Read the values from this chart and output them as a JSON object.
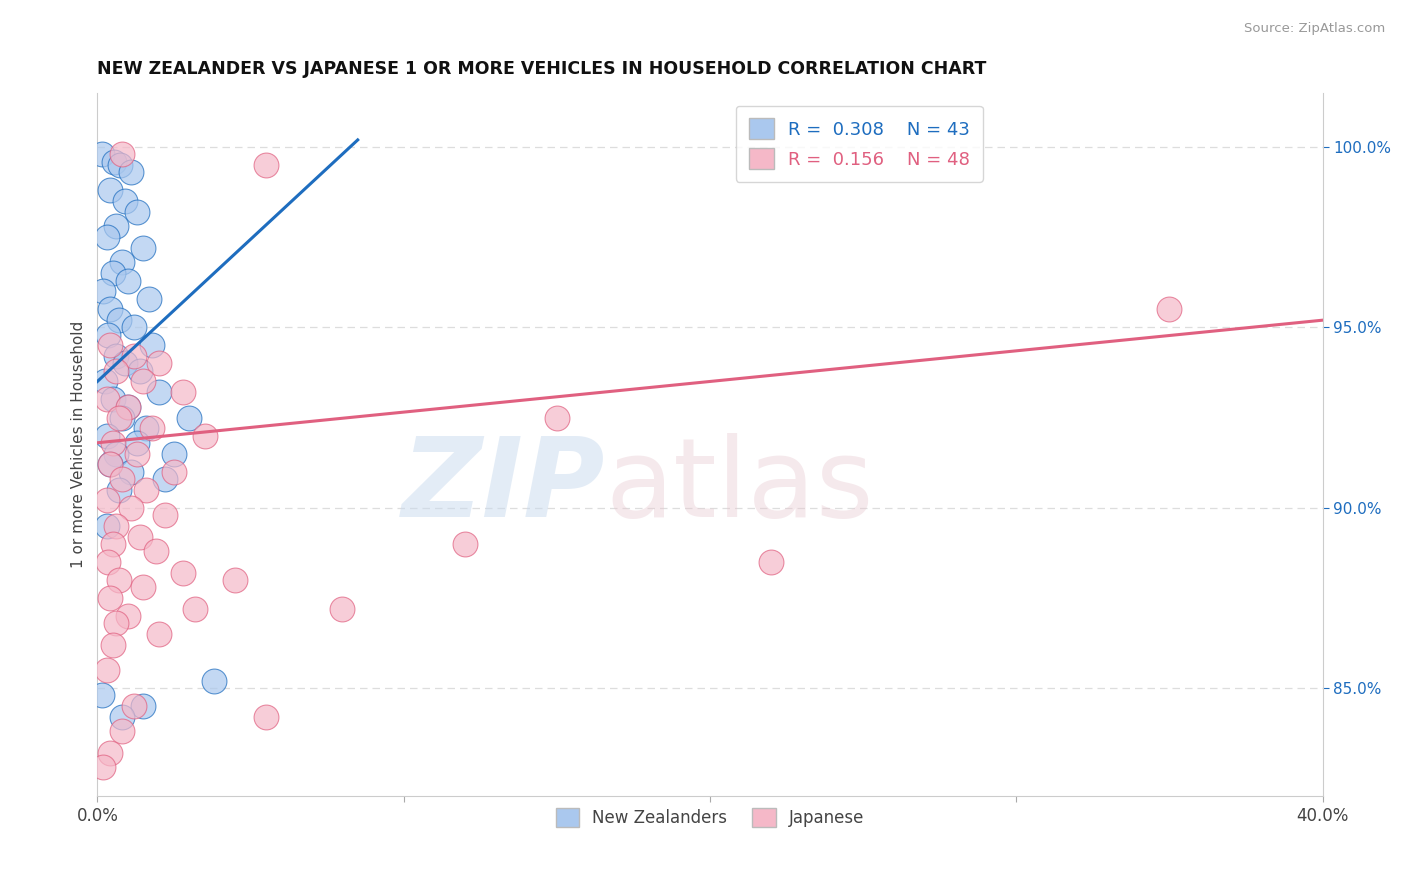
{
  "title": "NEW ZEALANDER VS JAPANESE 1 OR MORE VEHICLES IN HOUSEHOLD CORRELATION CHART",
  "source": "Source: ZipAtlas.com",
  "ylabel": "1 or more Vehicles in Household",
  "xlim": [
    0.0,
    40.0
  ],
  "ylim": [
    82.0,
    101.5
  ],
  "right_yticks": [
    85.0,
    90.0,
    95.0,
    100.0
  ],
  "right_ytick_labels": [
    "85.0%",
    "90.0%",
    "95.0%",
    "100.0%"
  ],
  "nz_color": "#aac8ee",
  "jp_color": "#f5b8c8",
  "nz_line_color": "#1e6dbf",
  "jp_line_color": "#e06080",
  "nz_line": [
    [
      0.0,
      93.5
    ],
    [
      8.5,
      100.2
    ]
  ],
  "jp_line": [
    [
      0.0,
      91.8
    ],
    [
      40.0,
      95.2
    ]
  ],
  "nz_points": [
    [
      0.15,
      99.8
    ],
    [
      0.55,
      99.6
    ],
    [
      0.75,
      99.5
    ],
    [
      1.1,
      99.3
    ],
    [
      0.4,
      98.8
    ],
    [
      0.9,
      98.5
    ],
    [
      1.3,
      98.2
    ],
    [
      0.6,
      97.8
    ],
    [
      0.3,
      97.5
    ],
    [
      1.5,
      97.2
    ],
    [
      0.8,
      96.8
    ],
    [
      0.5,
      96.5
    ],
    [
      1.0,
      96.3
    ],
    [
      0.2,
      96.0
    ],
    [
      1.7,
      95.8
    ],
    [
      0.4,
      95.5
    ],
    [
      0.7,
      95.2
    ],
    [
      1.2,
      95.0
    ],
    [
      0.35,
      94.8
    ],
    [
      1.8,
      94.5
    ],
    [
      0.6,
      94.2
    ],
    [
      0.9,
      94.0
    ],
    [
      1.4,
      93.8
    ],
    [
      0.25,
      93.5
    ],
    [
      2.0,
      93.2
    ],
    [
      0.5,
      93.0
    ],
    [
      1.0,
      92.8
    ],
    [
      0.8,
      92.5
    ],
    [
      1.6,
      92.2
    ],
    [
      0.3,
      92.0
    ],
    [
      1.3,
      91.8
    ],
    [
      0.6,
      91.5
    ],
    [
      0.4,
      91.2
    ],
    [
      1.1,
      91.0
    ],
    [
      2.2,
      90.8
    ],
    [
      3.0,
      92.5
    ],
    [
      0.7,
      90.5
    ],
    [
      2.5,
      91.5
    ],
    [
      0.3,
      89.5
    ],
    [
      0.15,
      84.8
    ],
    [
      1.5,
      84.5
    ],
    [
      0.8,
      84.2
    ],
    [
      3.8,
      85.2
    ]
  ],
  "jp_points": [
    [
      0.8,
      99.8
    ],
    [
      5.5,
      99.5
    ],
    [
      0.4,
      94.5
    ],
    [
      1.2,
      94.2
    ],
    [
      2.0,
      94.0
    ],
    [
      0.6,
      93.8
    ],
    [
      1.5,
      93.5
    ],
    [
      2.8,
      93.2
    ],
    [
      0.3,
      93.0
    ],
    [
      1.0,
      92.8
    ],
    [
      0.7,
      92.5
    ],
    [
      1.8,
      92.2
    ],
    [
      3.5,
      92.0
    ],
    [
      0.5,
      91.8
    ],
    [
      1.3,
      91.5
    ],
    [
      0.4,
      91.2
    ],
    [
      2.5,
      91.0
    ],
    [
      0.8,
      90.8
    ],
    [
      1.6,
      90.5
    ],
    [
      0.3,
      90.2
    ],
    [
      1.1,
      90.0
    ],
    [
      2.2,
      89.8
    ],
    [
      0.6,
      89.5
    ],
    [
      1.4,
      89.2
    ],
    [
      0.5,
      89.0
    ],
    [
      1.9,
      88.8
    ],
    [
      0.35,
      88.5
    ],
    [
      2.8,
      88.2
    ],
    [
      0.7,
      88.0
    ],
    [
      1.5,
      87.8
    ],
    [
      0.4,
      87.5
    ],
    [
      3.2,
      87.2
    ],
    [
      1.0,
      87.0
    ],
    [
      0.6,
      86.8
    ],
    [
      2.0,
      86.5
    ],
    [
      0.5,
      86.2
    ],
    [
      4.5,
      88.0
    ],
    [
      8.0,
      87.2
    ],
    [
      0.3,
      85.5
    ],
    [
      1.2,
      84.5
    ],
    [
      0.8,
      83.8
    ],
    [
      5.5,
      84.2
    ],
    [
      0.4,
      83.2
    ],
    [
      0.2,
      82.8
    ],
    [
      15.0,
      92.5
    ],
    [
      22.0,
      88.5
    ],
    [
      12.0,
      89.0
    ],
    [
      35.0,
      95.5
    ]
  ],
  "background_color": "#ffffff",
  "grid_color": "#dddddd"
}
